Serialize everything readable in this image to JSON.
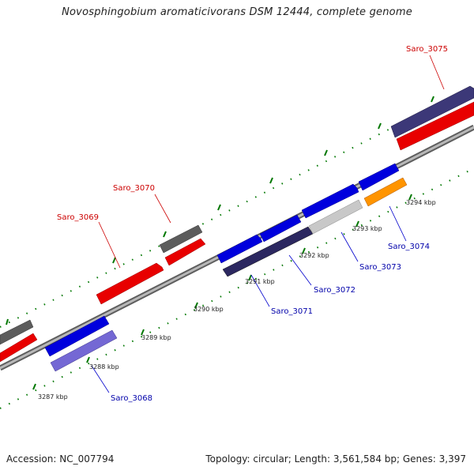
{
  "title": "Novosphingobium aromaticivorans DSM 12444, complete genome",
  "footer": {
    "accession": "Accession: NC_007794",
    "summary": "Topology: circular; Length: 3,561,584 bp; Genes: 3,397"
  },
  "colors": {
    "forward_cds": "#ff0000",
    "reverse_cds": "#0000ee",
    "gene_gray": "#666666",
    "gene_purple": "#6a60c8",
    "gene_navy": "#33306e",
    "gene_orange": "#ff9900",
    "gene_lightgray": "#c8c8c8",
    "forward_label": "#cc0000",
    "reverse_label": "#0000aa",
    "tick": "#007700",
    "backbone": "#888888"
  },
  "ticks": [
    {
      "label": "3287 kbp"
    },
    {
      "label": "3288 kbp"
    },
    {
      "label": "3289 kbp"
    },
    {
      "label": "3290 kbp"
    },
    {
      "label": "3291 kbp"
    },
    {
      "label": "3292 kbp"
    },
    {
      "label": "3293 kbp"
    },
    {
      "label": "3294 kbp"
    }
  ],
  "gene_labels": [
    {
      "text": "Saro_3068",
      "strand": "reverse"
    },
    {
      "text": "Saro_3069",
      "strand": "forward"
    },
    {
      "text": "Saro_3070",
      "strand": "forward"
    },
    {
      "text": "Saro_3071",
      "strand": "reverse"
    },
    {
      "text": "Saro_3072",
      "strand": "reverse"
    },
    {
      "text": "Saro_3073",
      "strand": "reverse"
    },
    {
      "text": "Saro_3074",
      "strand": "reverse"
    },
    {
      "text": "Saro_3075",
      "strand": "forward"
    }
  ]
}
